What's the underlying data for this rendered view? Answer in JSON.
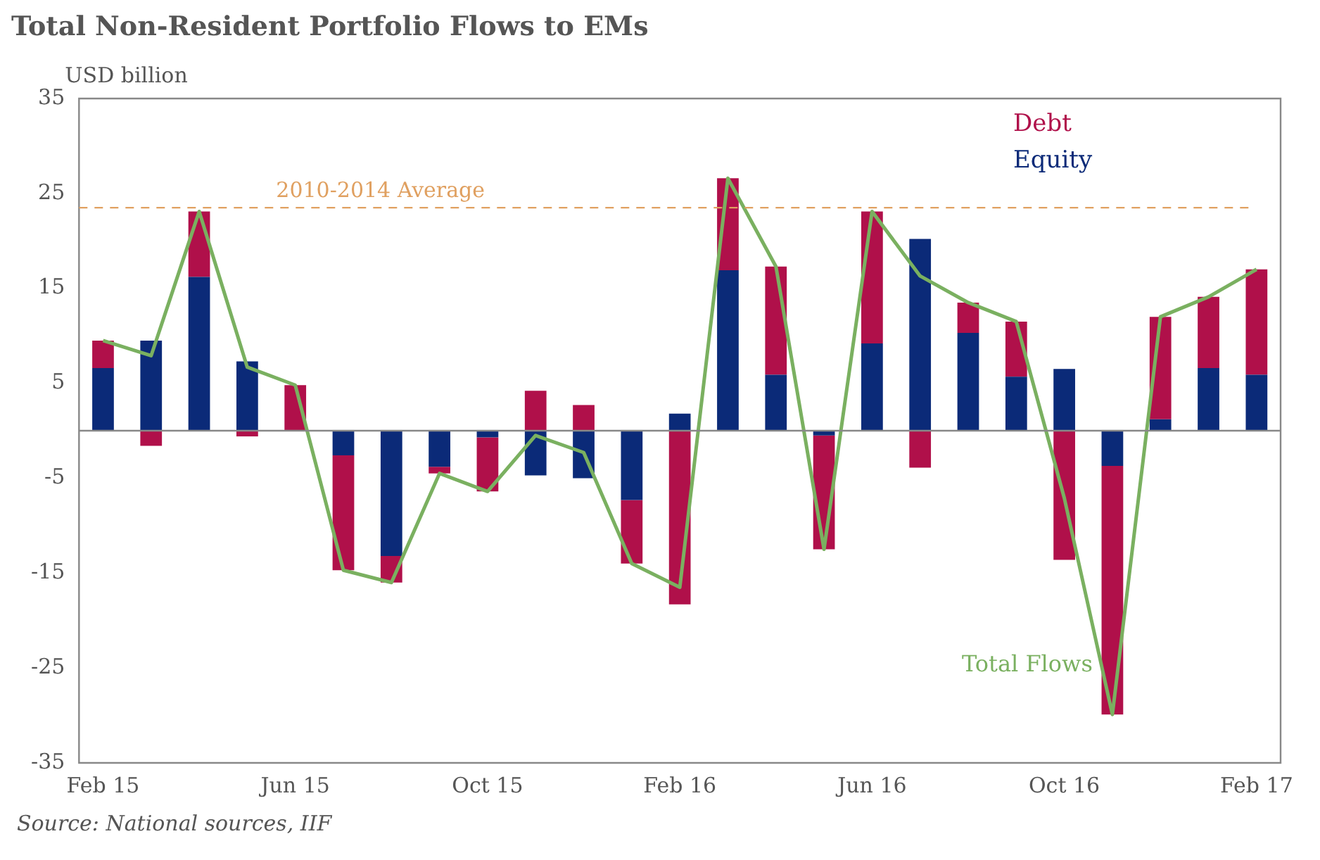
{
  "chart_data": {
    "type": "bar",
    "stacked": true,
    "title": "Total Non-Resident Portfolio Flows to EMs",
    "ylabel": "USD billion",
    "categories": [
      "Feb 15",
      null,
      null,
      null,
      "Jun 15",
      null,
      null,
      null,
      "Oct 15",
      null,
      null,
      null,
      "Feb 16",
      null,
      null,
      null,
      "Jun 16",
      null,
      null,
      null,
      "Oct 16",
      null,
      null,
      null,
      "Feb 17"
    ],
    "series": [
      {
        "name": "Equity",
        "color": "#0b2a78",
        "values": [
          6.6,
          9.5,
          16.2,
          7.3,
          0,
          -2.6,
          -13.2,
          -3.8,
          -0.7,
          -4.7,
          -5.0,
          -7.3,
          1.8,
          16.9,
          5.9,
          -0.5,
          9.2,
          20.2,
          10.3,
          5.7,
          6.5,
          -3.7,
          1.2,
          6.6,
          5.9
        ]
      },
      {
        "name": "Debt",
        "color": "#b0104a",
        "values": [
          2.9,
          -1.6,
          6.9,
          -0.6,
          4.8,
          -12.1,
          -2.8,
          -0.7,
          -5.7,
          4.2,
          2.7,
          -6.7,
          -18.3,
          9.7,
          11.4,
          -12.0,
          13.9,
          -3.9,
          3.2,
          5.8,
          -13.6,
          -26.2,
          10.8,
          7.5,
          11.1
        ]
      },
      {
        "name": "Total Flows",
        "type": "line",
        "color": "#7ab060",
        "values": [
          9.5,
          7.9,
          23.1,
          6.7,
          4.8,
          -14.7,
          -16.0,
          -4.5,
          -6.4,
          -0.5,
          -2.3,
          -14.0,
          -16.5,
          26.6,
          17.3,
          -12.5,
          23.1,
          16.3,
          13.5,
          11.5,
          -7.1,
          -29.9,
          12.0,
          14.1,
          17.0
        ]
      }
    ],
    "ylim": [
      -35,
      35
    ],
    "yticks": [
      -35,
      -25,
      -15,
      -5,
      5,
      15,
      25,
      35
    ],
    "grid": false,
    "legend": "top right",
    "marker": "none",
    "ref_lines": [
      {
        "axis": "y",
        "value": 23.5,
        "label": "2010-2014 Average",
        "color": "#e0a060",
        "line_style": "dashed"
      }
    ],
    "annotations": [
      "Source: National sources, IIF"
    ]
  }
}
